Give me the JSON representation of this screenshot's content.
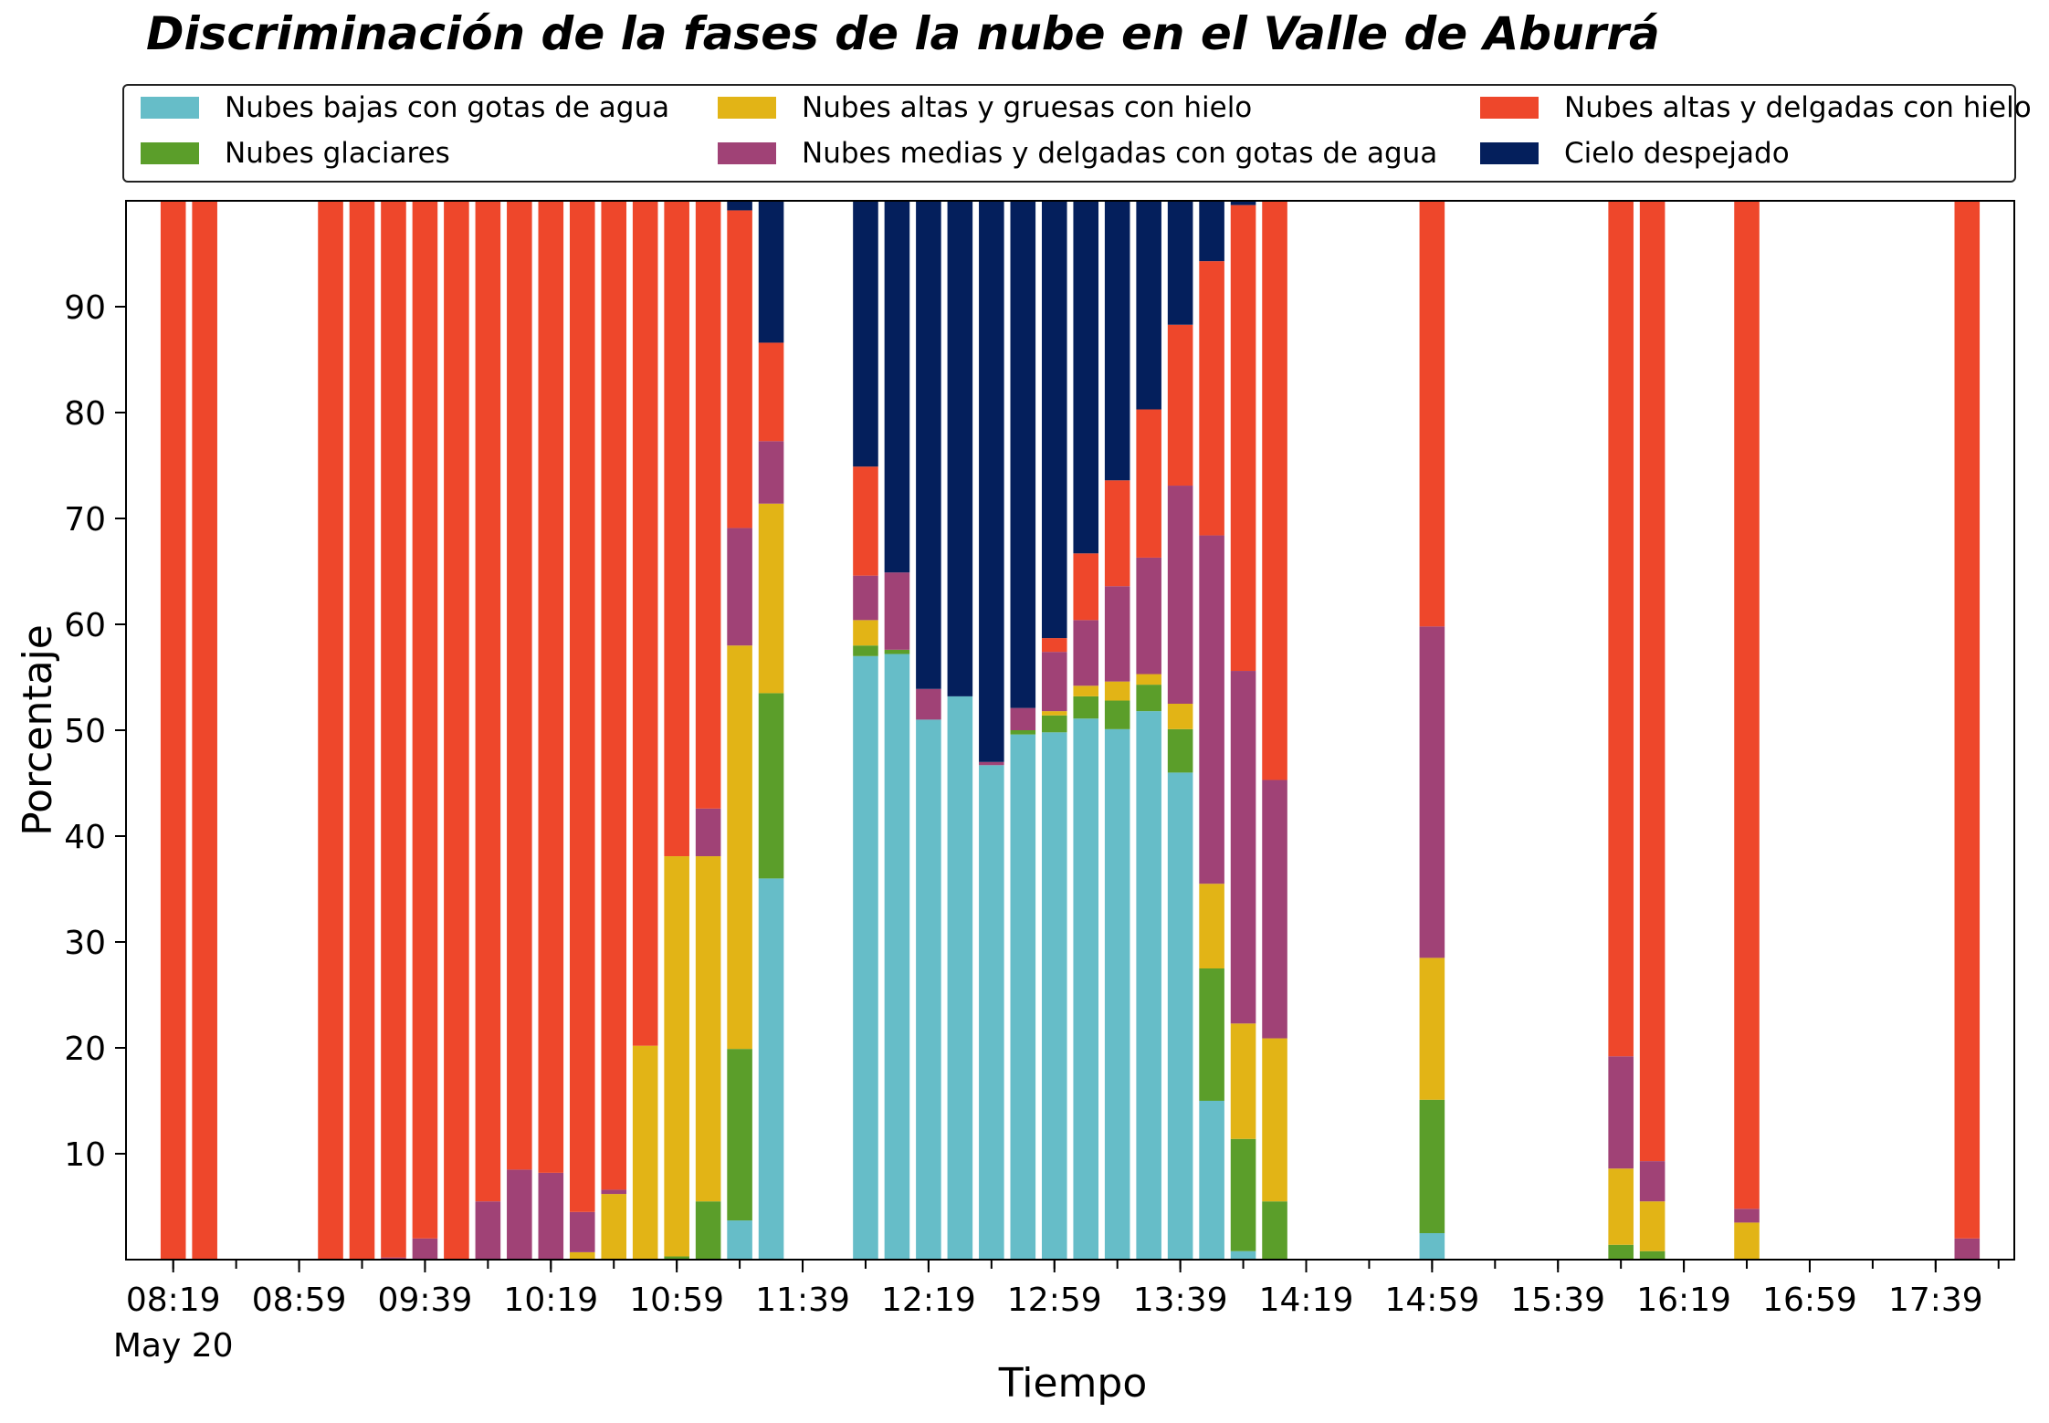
{
  "chart_data": {
    "type": "bar",
    "stacked": true,
    "title": "Discriminación de la fases de la nube en el Valle de Aburrá",
    "xlabel": "Tiempo",
    "ylabel": "Porcentaje",
    "ylim": [
      0,
      100
    ],
    "yticks": [
      10,
      20,
      30,
      40,
      50,
      60,
      70,
      80,
      90
    ],
    "legend_position": "top",
    "date_label": "May 20",
    "x_time_range": [
      "08:04",
      "18:04"
    ],
    "bar_width_minutes": 8,
    "xtick_labels": [
      "08:19",
      "08:59",
      "09:39",
      "10:19",
      "10:59",
      "11:39",
      "12:19",
      "12:59",
      "13:39",
      "14:19",
      "14:59",
      "15:39",
      "16:19",
      "16:59",
      "17:39"
    ],
    "series": [
      {
        "name": "Nubes bajas con gotas de agua",
        "color": "#66bdc8"
      },
      {
        "name": "Nubes glaciares",
        "color": "#5b9e2a"
      },
      {
        "name": "Nubes altas y gruesas con hielo",
        "color": "#e2b416"
      },
      {
        "name": "Nubes medias y delgadas con gotas de agua",
        "color": "#a04276"
      },
      {
        "name": "Nubes altas y delgadas con hielo",
        "color": "#ee472b"
      },
      {
        "name": "Cielo despejado",
        "color": "#041f5c"
      }
    ],
    "bars": [
      {
        "time": "08:19",
        "values": [
          0,
          0,
          0,
          0,
          100,
          0
        ]
      },
      {
        "time": "08:29",
        "values": [
          0,
          0,
          0,
          0,
          100,
          0
        ]
      },
      {
        "time": "09:09",
        "values": [
          0,
          0,
          0,
          0,
          100,
          0
        ]
      },
      {
        "time": "09:19",
        "values": [
          0,
          0,
          0,
          0,
          100,
          0
        ]
      },
      {
        "time": "09:29",
        "values": [
          0,
          0,
          0,
          0.2,
          99.8,
          0
        ]
      },
      {
        "time": "09:39",
        "values": [
          0,
          0,
          0,
          2,
          98,
          0
        ]
      },
      {
        "time": "09:49",
        "values": [
          0,
          0,
          0,
          0,
          100,
          0
        ]
      },
      {
        "time": "09:59",
        "values": [
          0,
          0,
          0,
          5.5,
          94.5,
          0
        ]
      },
      {
        "time": "10:09",
        "values": [
          0,
          0,
          0,
          8.5,
          91.5,
          0
        ]
      },
      {
        "time": "10:19",
        "values": [
          0,
          0,
          0,
          8.2,
          91.8,
          0
        ]
      },
      {
        "time": "10:29",
        "values": [
          0,
          0,
          0.7,
          3.8,
          95.5,
          0
        ]
      },
      {
        "time": "10:39",
        "values": [
          0,
          0,
          6.2,
          0.4,
          93.4,
          0
        ]
      },
      {
        "time": "10:49",
        "values": [
          0,
          0,
          20.2,
          0,
          79.8,
          0
        ]
      },
      {
        "time": "10:59",
        "values": [
          0,
          0.3,
          37.8,
          0,
          61.9,
          0
        ]
      },
      {
        "time": "11:09",
        "values": [
          0,
          5.5,
          32.6,
          4.5,
          57.4,
          0
        ]
      },
      {
        "time": "11:19",
        "values": [
          3.7,
          16.2,
          38.1,
          11.1,
          30,
          0.9
        ]
      },
      {
        "time": "11:29",
        "values": [
          36,
          17.5,
          17.9,
          5.9,
          9.3,
          13.4
        ]
      },
      {
        "time": "11:59",
        "values": [
          57,
          1,
          2.4,
          4.2,
          10.3,
          25.1
        ]
      },
      {
        "time": "12:09",
        "values": [
          57.2,
          0.4,
          0,
          7.3,
          0,
          35.1
        ]
      },
      {
        "time": "12:19",
        "values": [
          51,
          0,
          0,
          2.9,
          0,
          46.1
        ]
      },
      {
        "time": "12:29",
        "values": [
          53.2,
          0,
          0,
          0,
          0,
          46.8
        ]
      },
      {
        "time": "12:39",
        "values": [
          46.7,
          0,
          0,
          0.3,
          0,
          53
        ]
      },
      {
        "time": "12:49",
        "values": [
          49.6,
          0.4,
          0,
          2.1,
          0,
          47.9
        ]
      },
      {
        "time": "12:59",
        "values": [
          49.8,
          1.6,
          0.4,
          5.6,
          1.3,
          41.3
        ]
      },
      {
        "time": "13:09",
        "values": [
          51.1,
          2.1,
          1,
          6.2,
          6.3,
          33.3
        ]
      },
      {
        "time": "13:19",
        "values": [
          50.1,
          2.7,
          1.8,
          9,
          10,
          26.4
        ]
      },
      {
        "time": "13:29",
        "values": [
          51.8,
          2.5,
          1,
          11,
          14,
          19.7
        ]
      },
      {
        "time": "13:39",
        "values": [
          46,
          4.1,
          2.4,
          20.6,
          15.2,
          11.7
        ]
      },
      {
        "time": "13:49",
        "values": [
          15,
          12.5,
          8,
          32.9,
          25.9,
          5.7
        ]
      },
      {
        "time": "13:59",
        "values": [
          0.8,
          10.6,
          10.9,
          33.3,
          44,
          0.4
        ]
      },
      {
        "time": "14:09",
        "values": [
          0,
          5.5,
          15.4,
          24.4,
          54.7,
          0
        ]
      },
      {
        "time": "14:59",
        "values": [
          2.5,
          12.6,
          13.4,
          31.3,
          40.3,
          0.4
        ]
      },
      {
        "time": "15:59",
        "values": [
          0,
          1.4,
          7.2,
          10.6,
          80.8,
          0
        ]
      },
      {
        "time": "16:09",
        "values": [
          0,
          0.8,
          4.7,
          3.8,
          90.7,
          0
        ]
      },
      {
        "time": "16:39",
        "values": [
          0,
          0,
          3.5,
          1.3,
          95.2,
          0
        ]
      },
      {
        "time": "17:49",
        "values": [
          0,
          0,
          0,
          2,
          98,
          0
        ]
      }
    ]
  }
}
